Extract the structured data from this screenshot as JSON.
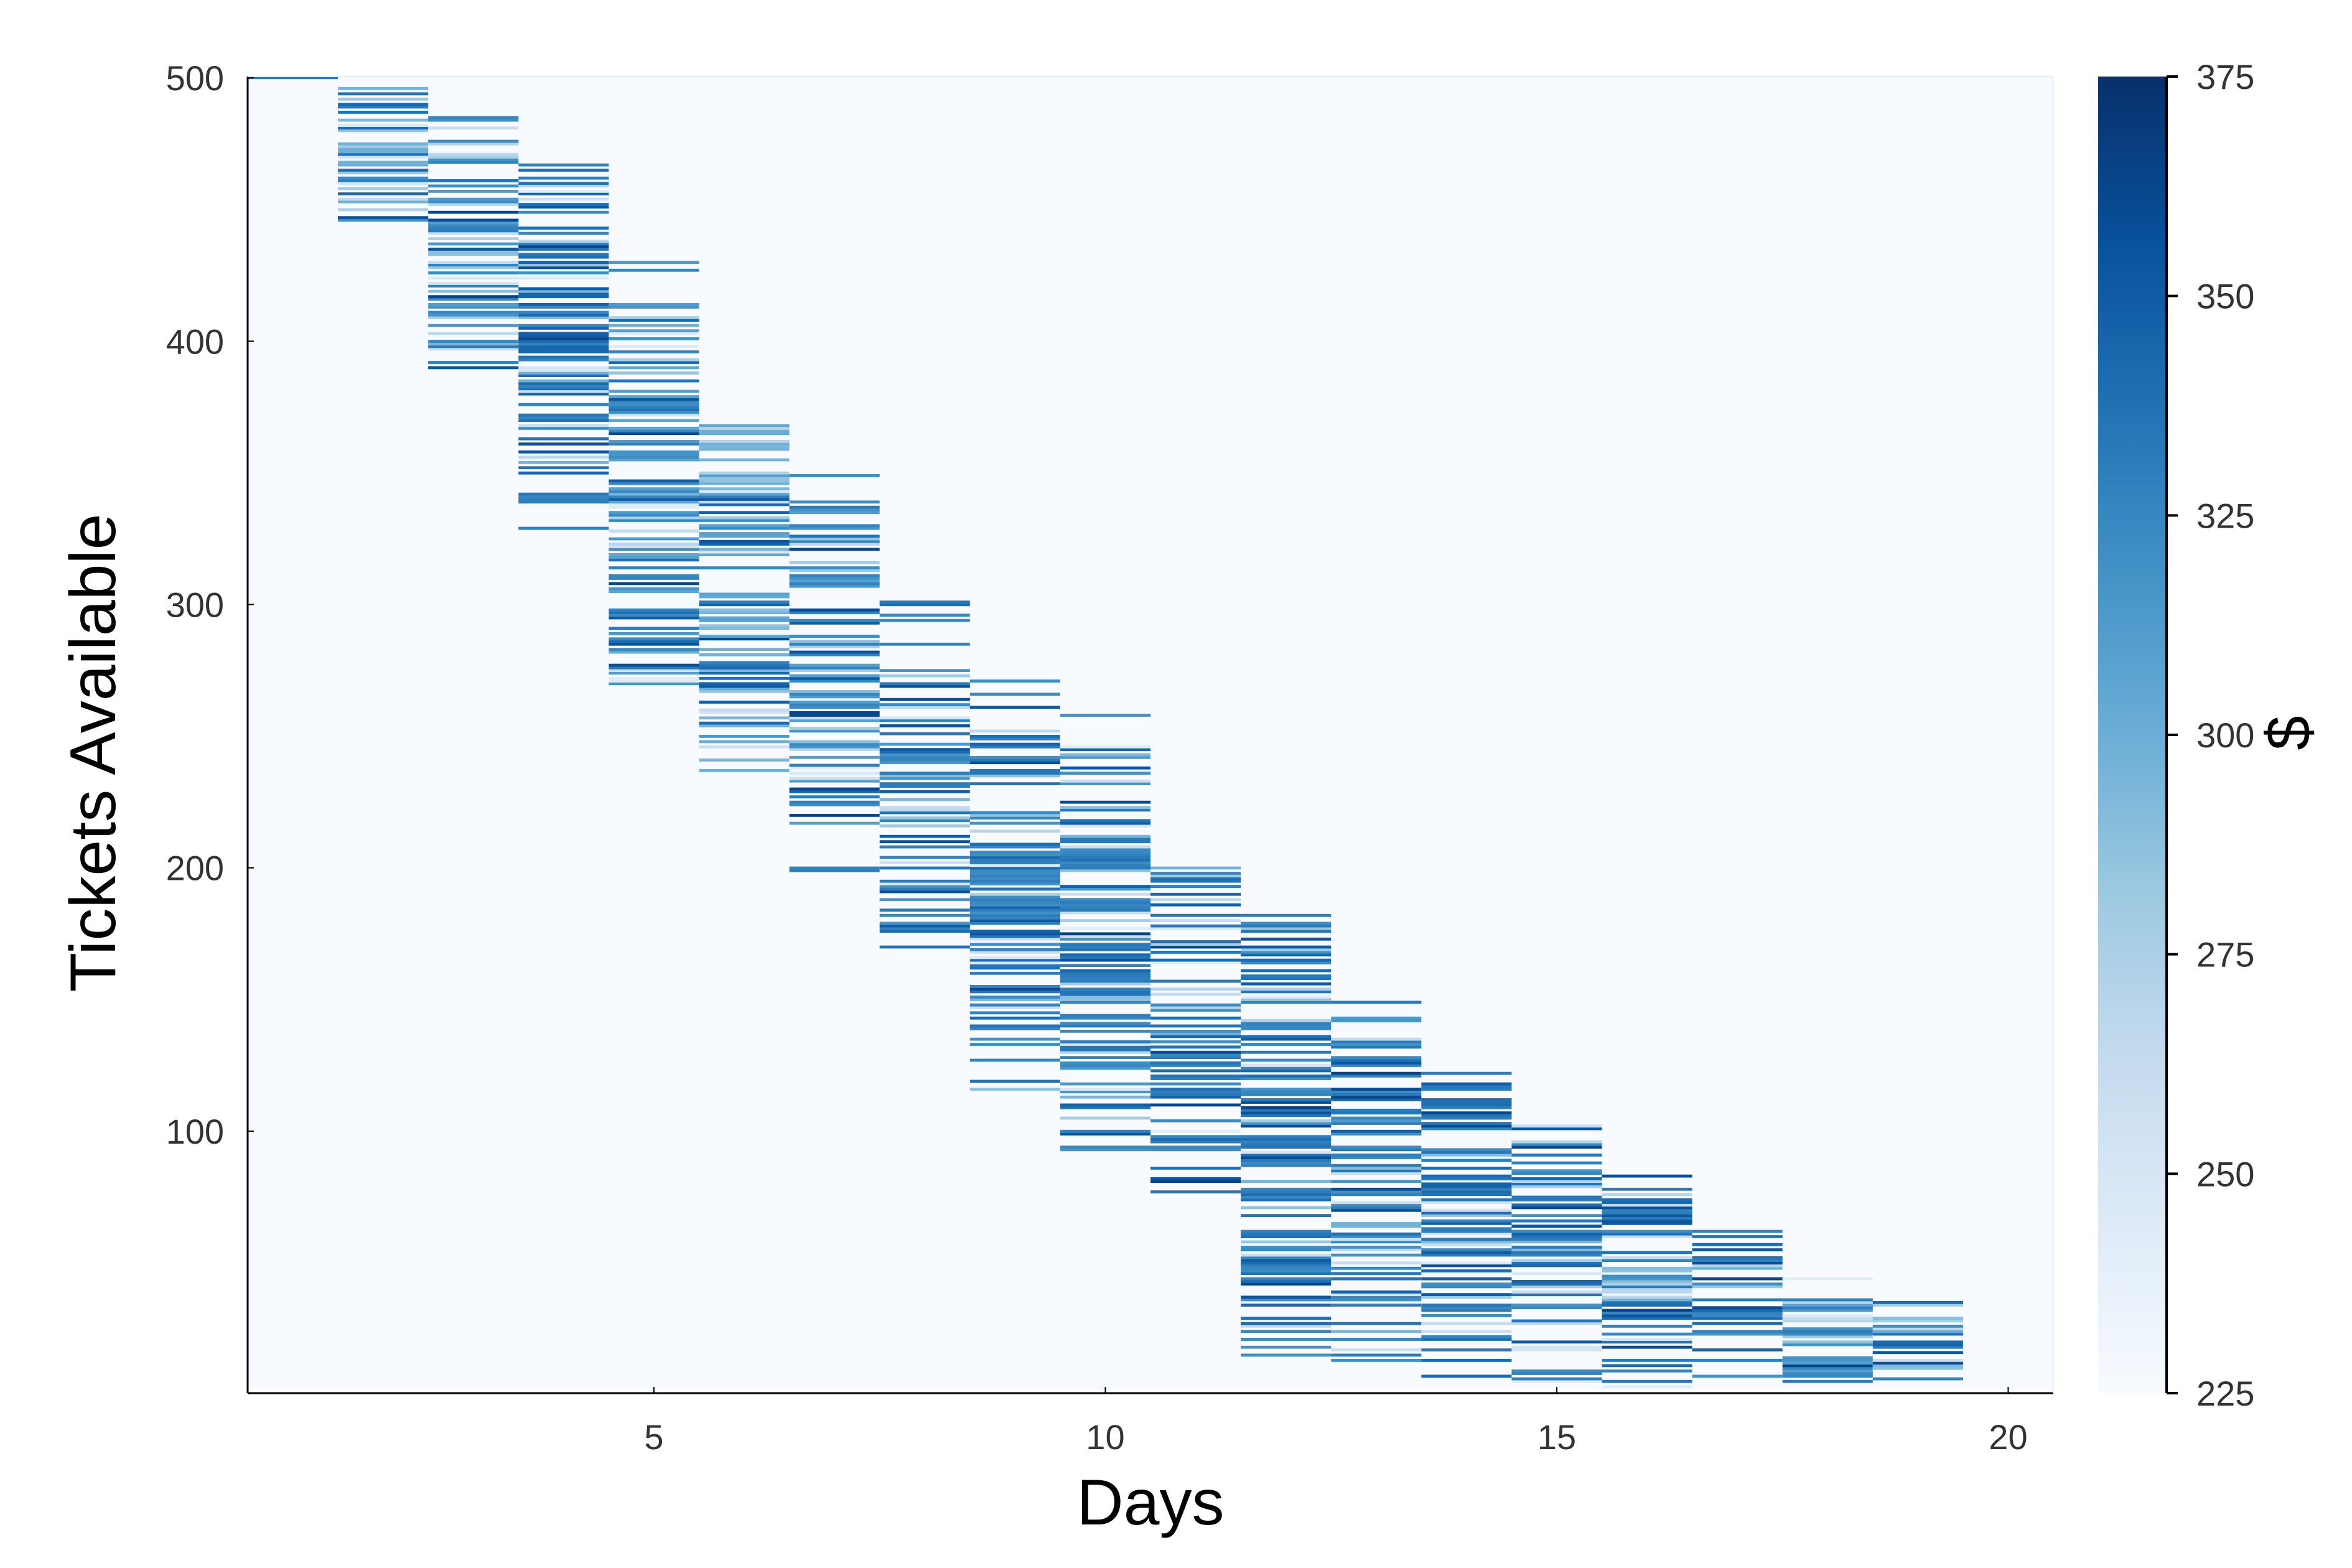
{
  "chart_data": {
    "type": "heatmap",
    "xlabel": "Days",
    "ylabel": "Tickets Available",
    "colorbar_label": "$",
    "xlim": [
      0.5,
      20.5
    ],
    "ylim": [
      1,
      500
    ],
    "x_ticks": [
      5,
      10,
      15,
      20
    ],
    "y_ticks": [
      100,
      200,
      300,
      400,
      500
    ],
    "colorbar_ticks": [
      225,
      250,
      275,
      300,
      325,
      350,
      375
    ],
    "color_range": [
      225,
      375
    ],
    "colormap": "Blues",
    "colors": {
      "background": "#f7fbff",
      "low": "#f7fbff",
      "high": "#08306b",
      "axis": "#000000",
      "tick_text": "#333333"
    },
    "grid": false,
    "legend": "colorbar-right",
    "days": [
      {
        "day": 1,
        "ticket_range": [
          500,
          500
        ],
        "typical_price": 330,
        "cells": [
          [
            500,
            330
          ]
        ]
      },
      {
        "day": 2,
        "ticket_range": [
          436,
          500
        ],
        "typical_price": 290
      },
      {
        "day": 3,
        "ticket_range": [
          380,
          485
        ],
        "typical_price": 320
      },
      {
        "day": 4,
        "ticket_range": [
          326,
          470
        ],
        "typical_price": 335
      },
      {
        "day": 5,
        "ticket_range": [
          270,
          430
        ],
        "typical_price": 315
      },
      {
        "day": 6,
        "ticket_range": [
          235,
          370
        ],
        "typical_price": 305
      },
      {
        "day": 7,
        "ticket_range": [
          193,
          352
        ],
        "typical_price": 320
      },
      {
        "day": 8,
        "ticket_range": [
          170,
          302
        ],
        "typical_price": 325
      },
      {
        "day": 9,
        "ticket_range": [
          113,
          272
        ],
        "typical_price": 330
      },
      {
        "day": 10,
        "ticket_range": [
          84,
          259
        ],
        "typical_price": 325
      },
      {
        "day": 11,
        "ticket_range": [
          73,
          200
        ],
        "typical_price": 330
      },
      {
        "day": 12,
        "ticket_range": [
          14,
          184
        ],
        "typical_price": 330
      },
      {
        "day": 13,
        "ticket_range": [
          13,
          155
        ],
        "typical_price": 325
      },
      {
        "day": 14,
        "ticket_range": [
          4,
          122
        ],
        "typical_price": 330
      },
      {
        "day": 15,
        "ticket_range": [
          5,
          105
        ],
        "typical_price": 330
      },
      {
        "day": 16,
        "ticket_range": [
          2,
          85
        ],
        "typical_price": 330
      },
      {
        "day": 17,
        "ticket_range": [
          7,
          65
        ],
        "typical_price": 330
      },
      {
        "day": 18,
        "ticket_range": [
          5,
          52
        ],
        "typical_price": 320
      },
      {
        "day": 19,
        "ticket_range": [
          3,
          35
        ],
        "typical_price": 290
      }
    ]
  }
}
